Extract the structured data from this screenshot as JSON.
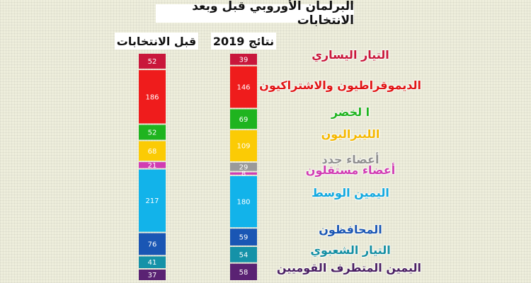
{
  "title": "البرلمان الأوروبي قبل وبعد الانتخابات",
  "chart_data": {
    "type": "bar",
    "stacked": true,
    "columns": [
      {
        "name": "قبل الانتخابات"
      },
      {
        "name": "نتائج 2019"
      }
    ],
    "groups": [
      {
        "name": "التيار اليساري",
        "color": "#c9173b",
        "before": 52,
        "after": 39
      },
      {
        "name": "الديموقراطيون والاشتراكيون",
        "color": "#ef1c1c",
        "before": 186,
        "after": 146
      },
      {
        "name": "ا لخضر",
        "color": "#1fb41f",
        "before": 52,
        "after": 69
      },
      {
        "name": "الليبراليون",
        "color": "#fbcb05",
        "before": 68,
        "after": 109
      },
      {
        "name": "أعضاء جدد",
        "color": "#9a9a9a",
        "before": null,
        "after": 29
      },
      {
        "name": "أعضاء مستقلون",
        "color": "#d13cb3",
        "before": 21,
        "after": 8
      },
      {
        "name": "اليمين الوسط",
        "color": "#12b3ea",
        "before": 217,
        "after": 180
      },
      {
        "name": "المحافظون",
        "color": "#1a56b4",
        "before": 76,
        "after": 59
      },
      {
        "name": "التيار الشعبوي",
        "color": "#1592a8",
        "before": 41,
        "after": 54
      },
      {
        "name": "اليمين المتطرف القوميين",
        "color": "#5a2273",
        "before": 37,
        "after": 58
      }
    ]
  },
  "label_colors": [
    "#c9173b",
    "#e11414",
    "#1fb41f",
    "#f5b800",
    "#909090",
    "#d13cb3",
    "#12a9e0",
    "#1a56b4",
    "#148fa3",
    "#4a1f63"
  ]
}
